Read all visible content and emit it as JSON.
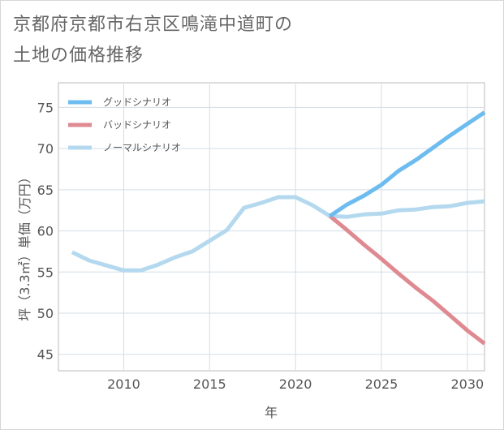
{
  "title_line1": "京都府京都市右京区鳴滝中道町の",
  "title_line2": "土地の価格推移",
  "chart_data": {
    "type": "line",
    "xlabel": "年",
    "ylabel": "坪（3.3㎡）単価（万円）",
    "xlim": [
      2006.2,
      2031
    ],
    "ylim": [
      43,
      78
    ],
    "xticks": [
      2010,
      2015,
      2020,
      2025,
      2030
    ],
    "yticks": [
      45,
      50,
      55,
      60,
      65,
      70,
      75
    ],
    "grid": true,
    "legend_position": "top-left",
    "series": [
      {
        "name": "グッドシナリオ",
        "color": "#6cbcf0",
        "x": [
          2022,
          2023,
          2024,
          2025,
          2026,
          2027,
          2028,
          2029,
          2030,
          2031
        ],
        "y": [
          61.8,
          63.2,
          64.3,
          65.6,
          67.3,
          68.6,
          70.1,
          71.6,
          73.0,
          74.4
        ]
      },
      {
        "name": "バッドシナリオ",
        "color": "#df8a91",
        "x": [
          2022,
          2023,
          2024,
          2025,
          2026,
          2027,
          2028,
          2029,
          2030,
          2031
        ],
        "y": [
          61.8,
          60.1,
          58.3,
          56.6,
          54.8,
          53.1,
          51.5,
          49.7,
          47.9,
          46.3
        ]
      },
      {
        "name": "ノーマルシナリオ",
        "color": "#b4d9ef",
        "x": [
          2007,
          2008,
          2009,
          2010,
          2011,
          2012,
          2013,
          2014,
          2015,
          2016,
          2017,
          2018,
          2019,
          2020,
          2021,
          2022,
          2023,
          2024,
          2025,
          2026,
          2027,
          2028,
          2029,
          2030,
          2031
        ],
        "y": [
          57.4,
          56.4,
          55.8,
          55.2,
          55.2,
          55.9,
          56.8,
          57.5,
          58.8,
          60.1,
          62.8,
          63.4,
          64.1,
          64.1,
          63.1,
          61.8,
          61.7,
          62.0,
          62.1,
          62.5,
          62.6,
          62.9,
          63.0,
          63.4,
          63.6
        ]
      }
    ]
  }
}
